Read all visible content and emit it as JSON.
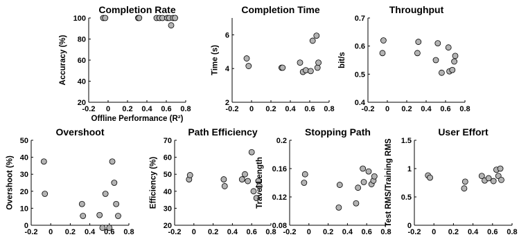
{
  "chart_data": [
    {
      "type": "scatter",
      "title": "Completion Rate",
      "xlabel": "Offline Performance (R²)",
      "ylabel": "Accuracy (%)",
      "xlim": [
        -0.2,
        0.8
      ],
      "ylim": [
        20,
        100
      ],
      "xticks": [
        -0.2,
        0,
        0.2,
        0.4,
        0.6,
        0.8
      ],
      "yticks": [
        20,
        40,
        60,
        80,
        100
      ],
      "xtick_labels": [
        "-0.2",
        "0",
        "0.2",
        "0.4",
        "0.6",
        "0.8"
      ],
      "ytick_labels": [
        "20",
        "40",
        "60",
        "80",
        "100"
      ],
      "points": [
        [
          -0.05,
          100
        ],
        [
          -0.03,
          100
        ],
        [
          0.31,
          100
        ],
        [
          0.32,
          100
        ],
        [
          0.5,
          100
        ],
        [
          0.53,
          100
        ],
        [
          0.56,
          100
        ],
        [
          0.61,
          100
        ],
        [
          0.63,
          100
        ],
        [
          0.65,
          93
        ],
        [
          0.67,
          100
        ],
        [
          0.69,
          100
        ]
      ]
    },
    {
      "type": "scatter",
      "title": "Completion Time",
      "xlabel": "",
      "ylabel": "Time (s)",
      "xlim": [
        -0.2,
        0.8
      ],
      "ylim": [
        2,
        7
      ],
      "xticks": [
        -0.2,
        0,
        0.2,
        0.4,
        0.6,
        0.8
      ],
      "yticks": [
        2,
        4,
        6
      ],
      "xtick_labels": [
        "-0.2",
        "0",
        "0.2",
        "0.4",
        "0.6",
        "0.8"
      ],
      "ytick_labels": [
        "2",
        "4",
        "6"
      ],
      "points": [
        [
          -0.05,
          4.6
        ],
        [
          -0.03,
          4.15
        ],
        [
          0.31,
          4.05
        ],
        [
          0.32,
          4.05
        ],
        [
          0.5,
          4.35
        ],
        [
          0.53,
          3.8
        ],
        [
          0.56,
          3.9
        ],
        [
          0.61,
          3.85
        ],
        [
          0.63,
          5.65
        ],
        [
          0.67,
          5.95
        ],
        [
          0.68,
          4.05
        ],
        [
          0.69,
          4.35
        ]
      ]
    },
    {
      "type": "scatter",
      "title": "Throughput",
      "xlabel": "",
      "ylabel": "bit/s",
      "xlim": [
        -0.2,
        0.8
      ],
      "ylim": [
        0.4,
        0.7
      ],
      "xticks": [
        -0.2,
        0,
        0.2,
        0.4,
        0.6,
        0.8
      ],
      "yticks": [
        0.4,
        0.5,
        0.6,
        0.7
      ],
      "xtick_labels": [
        "-0.2",
        "0",
        "0.2",
        "0.4",
        "0.6",
        "0.8"
      ],
      "ytick_labels": [
        "0.4",
        "0.5",
        "0.6",
        "0.7"
      ],
      "points": [
        [
          -0.05,
          0.575
        ],
        [
          -0.04,
          0.62
        ],
        [
          0.31,
          0.575
        ],
        [
          0.32,
          0.615
        ],
        [
          0.5,
          0.55
        ],
        [
          0.52,
          0.61
        ],
        [
          0.56,
          0.505
        ],
        [
          0.63,
          0.595
        ],
        [
          0.64,
          0.51
        ],
        [
          0.67,
          0.515
        ],
        [
          0.69,
          0.545
        ],
        [
          0.7,
          0.565
        ]
      ]
    },
    {
      "type": "scatter",
      "title": "Overshoot",
      "xlabel": "",
      "ylabel": "Overshoot (%)",
      "xlim": [
        -0.2,
        0.8
      ],
      "ylim": [
        0,
        50
      ],
      "xticks": [
        -0.2,
        0,
        0.2,
        0.4,
        0.6,
        0.8
      ],
      "yticks": [
        0,
        10,
        20,
        30,
        40,
        50
      ],
      "xtick_labels": [
        "-0.2",
        "0",
        "0.2",
        "0.4",
        "0.6",
        "0.8"
      ],
      "ytick_labels": [
        "0",
        "10",
        "20",
        "30",
        "40",
        "50"
      ],
      "points": [
        [
          -0.07,
          37.5
        ],
        [
          -0.06,
          18.5
        ],
        [
          0.32,
          12.5
        ],
        [
          0.33,
          5.5
        ],
        [
          0.5,
          6
        ],
        [
          0.53,
          -1.5
        ],
        [
          0.56,
          18.5
        ],
        [
          0.6,
          -1.5
        ],
        [
          0.63,
          37.5
        ],
        [
          0.65,
          25
        ],
        [
          0.67,
          12.5
        ],
        [
          0.69,
          5.5
        ]
      ]
    },
    {
      "type": "scatter",
      "title": "Path Efficiency",
      "xlabel": "",
      "ylabel": "Efficiency (%)",
      "xlim": [
        -0.2,
        0.8
      ],
      "ylim": [
        20,
        70
      ],
      "xticks": [
        -0.2,
        0,
        0.2,
        0.4,
        0.6,
        0.8
      ],
      "yticks": [
        20,
        30,
        40,
        50,
        60,
        70
      ],
      "xtick_labels": [
        "-0.2",
        "0",
        "0.2",
        "0.4",
        "0.6",
        "0.8"
      ],
      "ytick_labels": [
        "20",
        "30",
        "40",
        "50",
        "60",
        "70"
      ],
      "points": [
        [
          -0.05,
          47
        ],
        [
          -0.04,
          49.5
        ],
        [
          0.31,
          47
        ],
        [
          0.32,
          43
        ],
        [
          0.5,
          47
        ],
        [
          0.53,
          50
        ],
        [
          0.56,
          46
        ],
        [
          0.6,
          63
        ],
        [
          0.62,
          40
        ],
        [
          0.65,
          36
        ],
        [
          0.67,
          46
        ],
        [
          0.68,
          43
        ]
      ]
    },
    {
      "type": "scatter",
      "title": "Stopping Path",
      "xlabel": "",
      "ylabel": "Travel Length",
      "xlim": [
        -0.2,
        0.8
      ],
      "ylim": [
        0.08,
        0.2
      ],
      "xticks": [
        -0.2,
        0,
        0.2,
        0.4,
        0.6,
        0.8
      ],
      "yticks": [
        0.08,
        0.12,
        0.16,
        0.2
      ],
      "xtick_labels": [
        "-0.2",
        "0",
        "0.2",
        "0.4",
        "0.6",
        "0.8"
      ],
      "ytick_labels": [
        "0.08",
        "0.12",
        "0.16",
        "0.2"
      ],
      "points": [
        [
          -0.05,
          0.14
        ],
        [
          -0.04,
          0.152
        ],
        [
          0.31,
          0.105
        ],
        [
          0.32,
          0.137
        ],
        [
          0.49,
          0.111
        ],
        [
          0.51,
          0.133
        ],
        [
          0.56,
          0.16
        ],
        [
          0.57,
          0.141
        ],
        [
          0.62,
          0.156
        ],
        [
          0.65,
          0.138
        ],
        [
          0.67,
          0.143
        ],
        [
          0.68,
          0.149
        ]
      ]
    },
    {
      "type": "scatter",
      "title": "User Effort",
      "xlabel": "",
      "ylabel": "Test RMS/Training RMS",
      "xlim": [
        -0.2,
        0.8
      ],
      "ylim": [
        0,
        1.5
      ],
      "xticks": [
        -0.2,
        0,
        0.2,
        0.4,
        0.6,
        0.8
      ],
      "yticks": [
        0,
        0.5,
        1,
        1.5
      ],
      "xtick_labels": [
        "-0.2",
        "0",
        "0.2",
        "0.4",
        "0.6",
        "0.8"
      ],
      "ytick_labels": [
        "0",
        "0.5",
        "1",
        "1.5"
      ],
      "points": [
        [
          -0.06,
          0.88
        ],
        [
          -0.04,
          0.84
        ],
        [
          0.31,
          0.65
        ],
        [
          0.32,
          0.77
        ],
        [
          0.49,
          0.87
        ],
        [
          0.52,
          0.79
        ],
        [
          0.56,
          0.83
        ],
        [
          0.61,
          0.78
        ],
        [
          0.64,
          0.98
        ],
        [
          0.66,
          0.87
        ],
        [
          0.68,
          1.0
        ],
        [
          0.69,
          0.8
        ]
      ]
    }
  ]
}
